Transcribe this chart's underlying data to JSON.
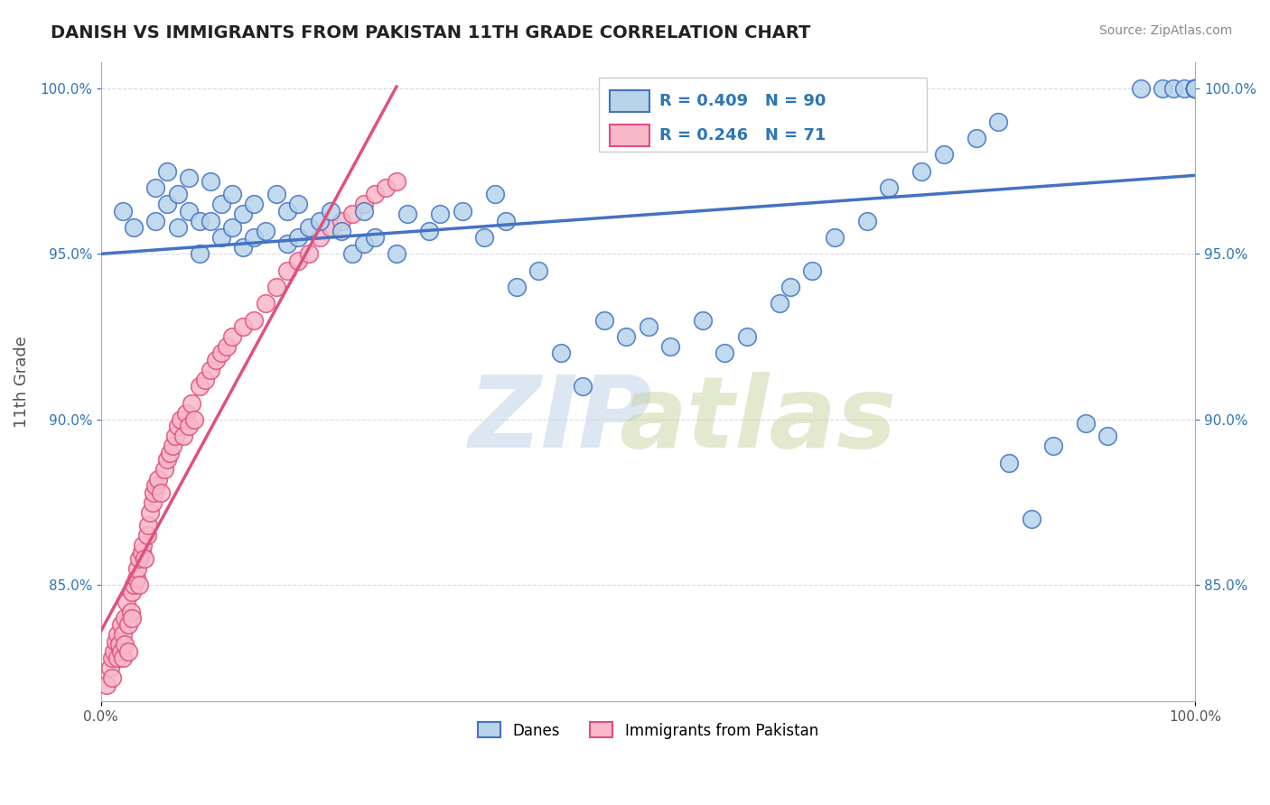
{
  "title": "DANISH VS IMMIGRANTS FROM PAKISTAN 11TH GRADE CORRELATION CHART",
  "source": "Source: ZipAtlas.com",
  "ylabel": "11th Grade",
  "x_min": 0.0,
  "x_max": 1.0,
  "y_min": 0.815,
  "y_max": 1.008,
  "y_tick_labels": [
    "85.0%",
    "90.0%",
    "95.0%",
    "100.0%"
  ],
  "y_tick_values": [
    0.85,
    0.9,
    0.95,
    1.0
  ],
  "danes_color": "#b8d4eb",
  "danes_edge_color": "#4472c4",
  "pakistan_color": "#f7b8c8",
  "pakistan_edge_color": "#e05080",
  "danes_R": 0.409,
  "danes_N": 90,
  "pakistan_R": 0.246,
  "pakistan_N": 71,
  "legend_R_color": "#2e75b6",
  "background_color": "#ffffff",
  "grid_color": "#cccccc",
  "danes_x": [
    0.02,
    0.03,
    0.05,
    0.05,
    0.06,
    0.06,
    0.07,
    0.07,
    0.08,
    0.08,
    0.09,
    0.09,
    0.1,
    0.1,
    0.11,
    0.11,
    0.12,
    0.12,
    0.13,
    0.13,
    0.14,
    0.14,
    0.15,
    0.16,
    0.17,
    0.17,
    0.18,
    0.18,
    0.19,
    0.2,
    0.21,
    0.22,
    0.23,
    0.24,
    0.24,
    0.25,
    0.27,
    0.28,
    0.3,
    0.31,
    0.33,
    0.35,
    0.36,
    0.37,
    0.38,
    0.4,
    0.42,
    0.44,
    0.46,
    0.48,
    0.5,
    0.52,
    0.55,
    0.57,
    0.59,
    0.62,
    0.63,
    0.65,
    0.67,
    0.7,
    0.72,
    0.75,
    0.77,
    0.8,
    0.82,
    0.83,
    0.85,
    0.87,
    0.9,
    0.92,
    0.95,
    0.97,
    0.98,
    0.99,
    1.0,
    1.0,
    1.0,
    1.0,
    1.0,
    1.0,
    1.0,
    1.0,
    1.0,
    1.0,
    1.0,
    1.0,
    1.0,
    1.0,
    1.0,
    1.0
  ],
  "danes_y": [
    0.963,
    0.958,
    0.97,
    0.96,
    0.975,
    0.965,
    0.968,
    0.958,
    0.973,
    0.963,
    0.96,
    0.95,
    0.972,
    0.96,
    0.965,
    0.955,
    0.968,
    0.958,
    0.962,
    0.952,
    0.965,
    0.955,
    0.957,
    0.968,
    0.963,
    0.953,
    0.965,
    0.955,
    0.958,
    0.96,
    0.963,
    0.957,
    0.95,
    0.963,
    0.953,
    0.955,
    0.95,
    0.962,
    0.957,
    0.962,
    0.963,
    0.955,
    0.968,
    0.96,
    0.94,
    0.945,
    0.92,
    0.91,
    0.93,
    0.925,
    0.928,
    0.922,
    0.93,
    0.92,
    0.925,
    0.935,
    0.94,
    0.945,
    0.955,
    0.96,
    0.97,
    0.975,
    0.98,
    0.985,
    0.99,
    0.887,
    0.87,
    0.892,
    0.899,
    0.895,
    1.0,
    1.0,
    1.0,
    1.0,
    1.0,
    1.0,
    1.0,
    1.0,
    1.0,
    1.0,
    1.0,
    1.0,
    1.0,
    1.0,
    1.0,
    1.0,
    1.0,
    1.0,
    1.0,
    1.0
  ],
  "pakistan_x": [
    0.005,
    0.008,
    0.01,
    0.01,
    0.012,
    0.013,
    0.015,
    0.015,
    0.017,
    0.018,
    0.018,
    0.02,
    0.02,
    0.022,
    0.022,
    0.023,
    0.025,
    0.025,
    0.027,
    0.028,
    0.028,
    0.03,
    0.032,
    0.033,
    0.035,
    0.035,
    0.037,
    0.038,
    0.04,
    0.042,
    0.043,
    0.045,
    0.047,
    0.048,
    0.05,
    0.052,
    0.055,
    0.058,
    0.06,
    0.063,
    0.065,
    0.068,
    0.07,
    0.073,
    0.075,
    0.078,
    0.08,
    0.083,
    0.085,
    0.09,
    0.095,
    0.1,
    0.105,
    0.11,
    0.115,
    0.12,
    0.13,
    0.14,
    0.15,
    0.16,
    0.17,
    0.18,
    0.19,
    0.2,
    0.21,
    0.22,
    0.23,
    0.24,
    0.25,
    0.26,
    0.27
  ],
  "pakistan_y": [
    0.82,
    0.825,
    0.828,
    0.822,
    0.83,
    0.833,
    0.835,
    0.828,
    0.832,
    0.838,
    0.83,
    0.835,
    0.828,
    0.84,
    0.832,
    0.845,
    0.838,
    0.83,
    0.842,
    0.848,
    0.84,
    0.85,
    0.852,
    0.855,
    0.858,
    0.85,
    0.86,
    0.862,
    0.858,
    0.865,
    0.868,
    0.872,
    0.875,
    0.878,
    0.88,
    0.882,
    0.878,
    0.885,
    0.888,
    0.89,
    0.892,
    0.895,
    0.898,
    0.9,
    0.895,
    0.902,
    0.898,
    0.905,
    0.9,
    0.91,
    0.912,
    0.915,
    0.918,
    0.92,
    0.922,
    0.925,
    0.928,
    0.93,
    0.935,
    0.94,
    0.945,
    0.948,
    0.95,
    0.955,
    0.958,
    0.96,
    0.962,
    0.965,
    0.968,
    0.97,
    0.972
  ]
}
